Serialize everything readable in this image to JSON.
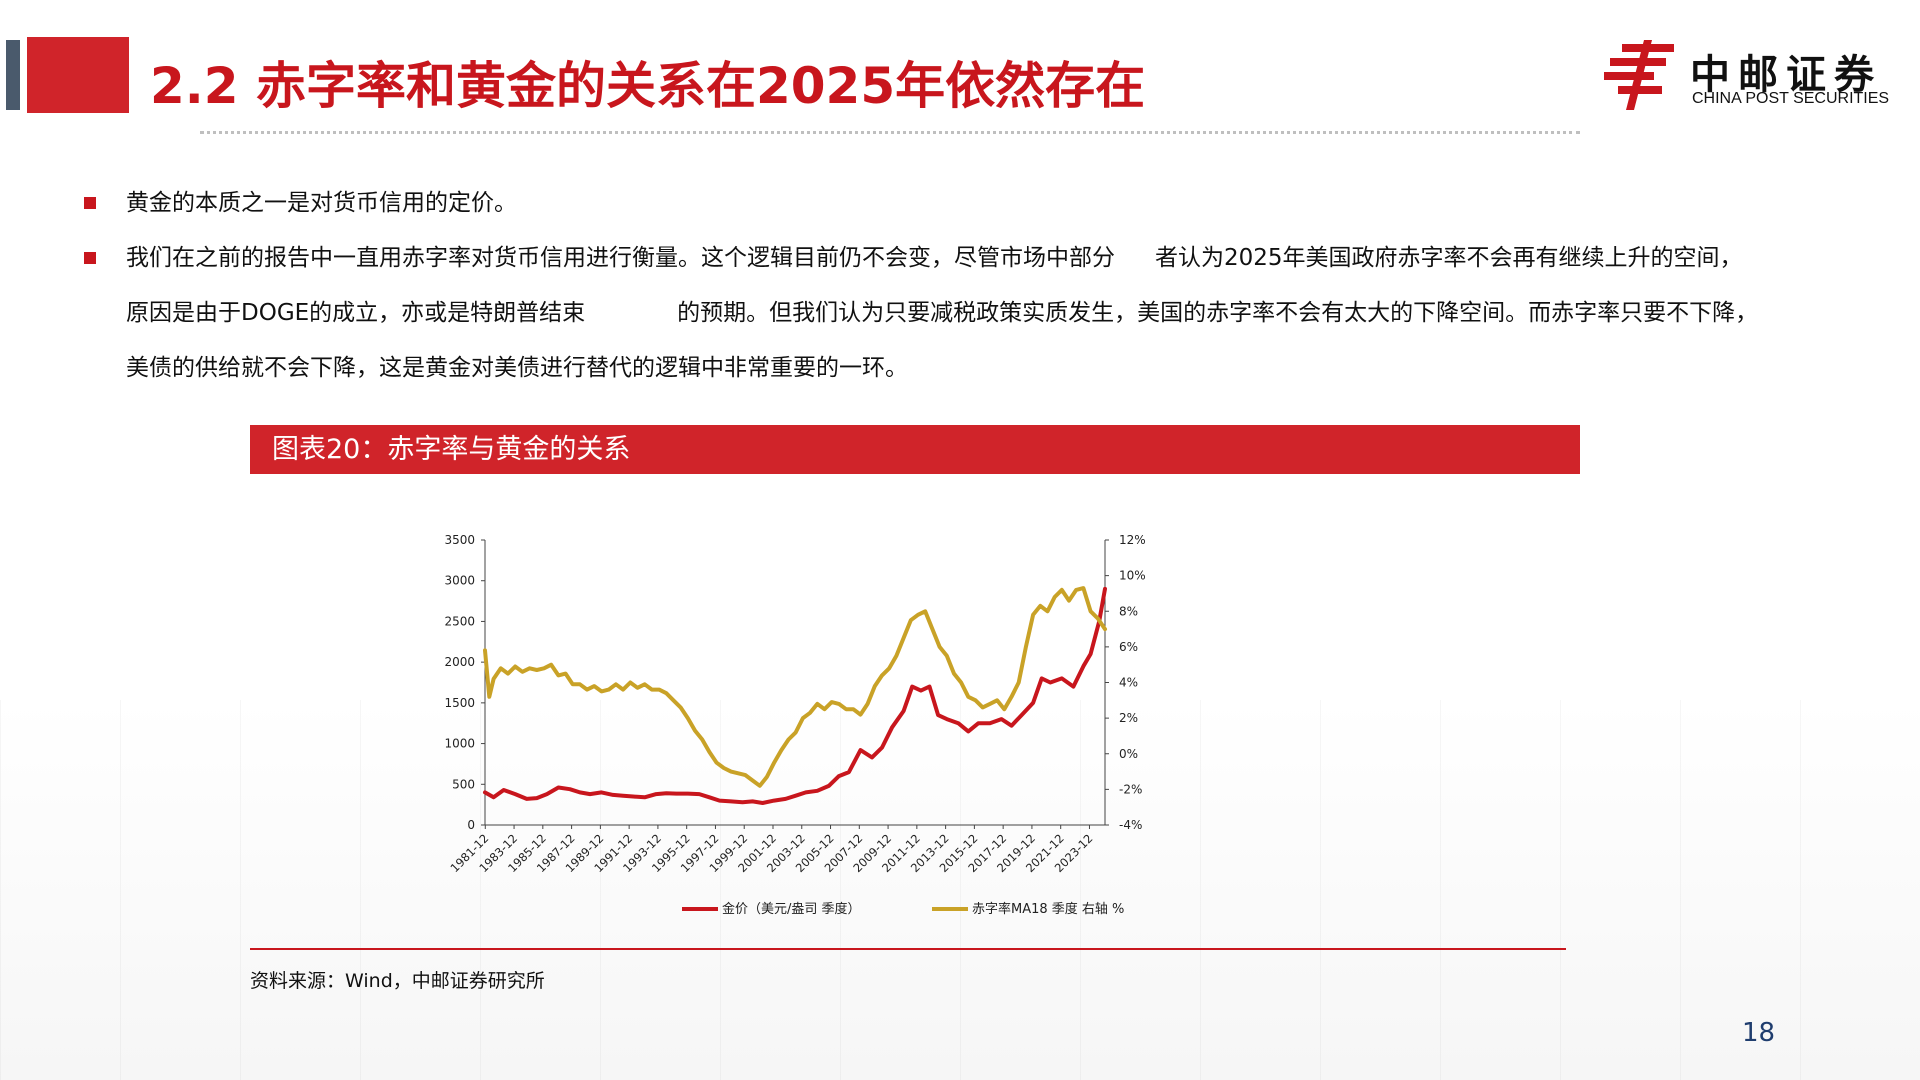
{
  "header": {
    "title": "2.2 赤字率和黄金的关系在2025年依然存在",
    "logo_cn": "中邮证券",
    "logo_en": "CHINA POST SECURITIES"
  },
  "bullets": [
    {
      "text": "黄金的本质之一是对货币信用的定价。"
    },
    {
      "line1_a": "我们在之前的报告中一直用赤字率对货币信用进行衡量。这个逻辑目前仍不会变，尽管市场中部分",
      "line1_b": "者认为2025年美国政府赤字率不会再有继续上升的空间，",
      "line2_a": "原因是由于DOGE的成立，亦或是特朗普结束",
      "line2_b": "的预期。但我们认为只要减税政策实质发生，美国的赤字率不会有太大的下降空间。而赤字率只要不下降，",
      "line3": "美债的供给就不会下降，这是黄金对美债进行替代的逻辑中非常重要的一环。"
    }
  ],
  "figure": {
    "banner": "图表20：赤字率与黄金的关系",
    "source": "资料来源：Wind，中邮证券研究所"
  },
  "page_number": "18",
  "colors": {
    "brand_red": "#c8161d",
    "gold_series": "#c9a227",
    "banner_red": "#d0242a"
  },
  "chart_data": {
    "type": "line",
    "x_labels": [
      "1981-12",
      "1983-12",
      "1985-12",
      "1987-12",
      "1989-12",
      "1991-12",
      "1993-12",
      "1995-12",
      "1997-12",
      "1999-12",
      "2001-12",
      "2003-12",
      "2005-12",
      "2007-12",
      "2009-12",
      "2011-12",
      "2013-12",
      "2015-12",
      "2017-12",
      "2019-12",
      "2021-12",
      "2023-12"
    ],
    "left_axis": {
      "ticks": [
        "0",
        "500",
        "1000",
        "1500",
        "2000",
        "2500",
        "3000",
        "3500"
      ],
      "ylim": [
        0,
        3500
      ]
    },
    "right_axis": {
      "ticks": [
        "-4%",
        "-2%",
        "0%",
        "2%",
        "4%",
        "6%",
        "8%",
        "10%",
        "12%"
      ],
      "ylim": [
        -4,
        12
      ]
    },
    "series": [
      {
        "name": "金价（美元/盎司 季度）",
        "axis": "left",
        "color": "#c8161d",
        "x": [
          1981.9,
          1982.5,
          1983.2,
          1984.0,
          1984.8,
          1985.5,
          1986.2,
          1987.0,
          1987.8,
          1988.5,
          1989.2,
          1990.0,
          1990.8,
          1991.5,
          1992.2,
          1993.0,
          1993.8,
          1994.5,
          1995.2,
          1996.0,
          1996.8,
          1997.5,
          1998.2,
          1999.0,
          1999.8,
          2000.5,
          2001.2,
          2002.0,
          2002.8,
          2003.5,
          2004.2,
          2005.0,
          2005.8,
          2006.5,
          2007.2,
          2008.0,
          2008.8,
          2009.5,
          2010.2,
          2011.0,
          2011.6,
          2012.2,
          2012.8,
          2013.4,
          2014.0,
          2014.8,
          2015.5,
          2016.2,
          2017.0,
          2017.8,
          2018.5,
          2019.2,
          2020.0,
          2020.6,
          2021.2,
          2022.0,
          2022.8,
          2023.5,
          2024.0,
          2024.6,
          2025.0
        ],
        "y": [
          400,
          340,
          430,
          380,
          320,
          330,
          380,
          460,
          440,
          400,
          380,
          400,
          370,
          360,
          350,
          340,
          380,
          390,
          385,
          385,
          380,
          340,
          300,
          290,
          280,
          290,
          270,
          300,
          320,
          360,
          400,
          420,
          480,
          600,
          650,
          920,
          830,
          950,
          1200,
          1400,
          1700,
          1650,
          1700,
          1350,
          1300,
          1250,
          1150,
          1250,
          1250,
          1300,
          1220,
          1350,
          1500,
          1800,
          1750,
          1800,
          1700,
          1950,
          2100,
          2500,
          2900
        ]
      },
      {
        "name": "赤字率MA18 季度 右轴 %",
        "axis": "right",
        "color": "#c9a227",
        "x": [
          1981.9,
          1982.2,
          1982.5,
          1983.0,
          1983.5,
          1984.0,
          1984.5,
          1985.0,
          1985.5,
          1986.0,
          1986.5,
          1987.0,
          1987.5,
          1988.0,
          1988.5,
          1989.0,
          1989.5,
          1990.0,
          1990.5,
          1991.0,
          1991.5,
          1992.0,
          1992.5,
          1993.0,
          1993.5,
          1994.0,
          1994.5,
          1995.0,
          1995.5,
          1996.0,
          1996.5,
          1997.0,
          1997.5,
          1998.0,
          1998.5,
          1999.0,
          1999.5,
          2000.0,
          2000.5,
          2001.0,
          2001.5,
          2002.0,
          2002.5,
          2003.0,
          2003.5,
          2004.0,
          2004.5,
          2005.0,
          2005.5,
          2006.0,
          2006.5,
          2007.0,
          2007.5,
          2008.0,
          2008.5,
          2009.0,
          2009.5,
          2010.0,
          2010.5,
          2011.0,
          2011.5,
          2012.0,
          2012.5,
          2013.0,
          2013.5,
          2014.0,
          2014.5,
          2015.0,
          2015.5,
          2016.0,
          2016.5,
          2017.0,
          2017.5,
          2018.0,
          2018.5,
          2019.0,
          2019.5,
          2020.0,
          2020.5,
          2021.0,
          2021.5,
          2022.0,
          2022.5,
          2023.0,
          2023.5,
          2024.0,
          2024.5,
          2025.0
        ],
        "y": [
          5.8,
          3.2,
          4.2,
          4.8,
          4.5,
          4.9,
          4.6,
          4.8,
          4.7,
          4.8,
          5.0,
          4.4,
          4.5,
          3.9,
          3.9,
          3.6,
          3.8,
          3.5,
          3.6,
          3.9,
          3.6,
          4.0,
          3.7,
          3.9,
          3.6,
          3.6,
          3.4,
          3.0,
          2.6,
          2.0,
          1.3,
          0.8,
          0.1,
          -0.5,
          -0.8,
          -1.0,
          -1.1,
          -1.2,
          -1.5,
          -1.8,
          -1.3,
          -0.5,
          0.2,
          0.8,
          1.2,
          2.0,
          2.3,
          2.8,
          2.5,
          2.9,
          2.8,
          2.5,
          2.5,
          2.2,
          2.8,
          3.8,
          4.4,
          4.8,
          5.5,
          6.5,
          7.5,
          7.8,
          8.0,
          7.0,
          6.0,
          5.5,
          4.5,
          4.0,
          3.2,
          3.0,
          2.6,
          2.8,
          3.0,
          2.5,
          3.2,
          4.0,
          6.0,
          7.8,
          8.3,
          8.0,
          8.8,
          9.2,
          8.6,
          9.2,
          9.3,
          8.0,
          7.6,
          7.0
        ]
      }
    ],
    "legend_position": "bottom"
  }
}
